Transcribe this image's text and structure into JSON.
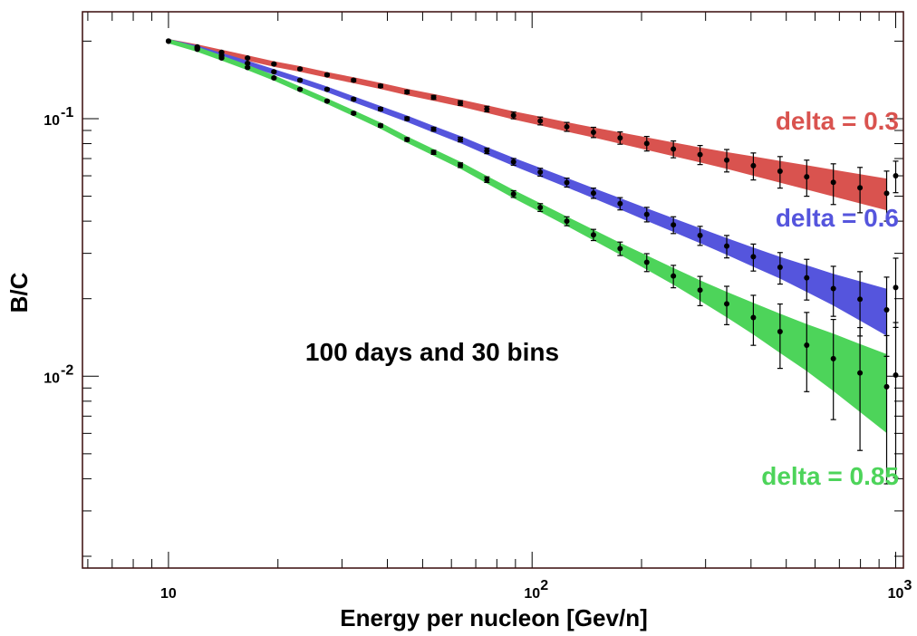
{
  "chart_data": {
    "type": "line",
    "title": "",
    "annotation": "100 days and 30 bins",
    "xlabel": "Energy per nucleon [Gev/n]",
    "ylabel": "B/C",
    "xscale": "log",
    "yscale": "log",
    "xlim": [
      5.8,
      1050
    ],
    "ylim": [
      0.0018,
      0.26
    ],
    "x_tick_labels": [
      {
        "value": 10,
        "base": "10",
        "exp": ""
      },
      {
        "value": 100,
        "base": "10",
        "exp": "2"
      },
      {
        "value": 1000,
        "base": "10",
        "exp": "3"
      }
    ],
    "y_tick_labels": [
      {
        "value": 0.1,
        "base": "10",
        "exp": "-1"
      },
      {
        "value": 0.01,
        "base": "10",
        "exp": "-2"
      }
    ],
    "x": [
      10,
      12,
      14,
      16.5,
      19.5,
      23,
      27.3,
      32.3,
      38.3,
      45.3,
      53.6,
      63.5,
      75.1,
      88.9,
      105.3,
      124.6,
      147.5,
      174.6,
      206.7,
      244.7,
      289.7,
      343.0,
      406.0,
      480.8,
      569.2,
      673.8,
      797.6,
      944.3,
      1000
    ],
    "series": [
      {
        "name": "delta = 0.3",
        "color": "#d9534f",
        "values": [
          0.2,
          0.19,
          0.181,
          0.172,
          0.163,
          0.156,
          0.148,
          0.141,
          0.134,
          0.127,
          0.121,
          0.115,
          0.109,
          0.103,
          0.098,
          0.093,
          0.0885,
          0.0842,
          0.0801,
          0.0762,
          0.0725,
          0.069,
          0.0657,
          0.0625,
          0.0595,
          0.0566,
          0.0539,
          0.0513,
          0.06
        ],
        "rel_error": [
          0.0,
          0.005,
          0.006,
          0.007,
          0.008,
          0.009,
          0.01,
          0.012,
          0.014,
          0.016,
          0.018,
          0.021,
          0.025,
          0.03,
          0.035,
          0.04,
          0.046,
          0.055,
          0.065,
          0.075,
          0.085,
          0.1,
          0.12,
          0.14,
          0.16,
          0.18,
          0.2,
          0.22,
          0.14
        ]
      },
      {
        "name": "delta = 0.6",
        "color": "#5555dd",
        "values": [
          0.2,
          0.188,
          0.176,
          0.164,
          0.152,
          0.141,
          0.13,
          0.119,
          0.109,
          0.1,
          0.091,
          0.083,
          0.075,
          0.068,
          0.062,
          0.0565,
          0.0514,
          0.0468,
          0.0425,
          0.0387,
          0.0352,
          0.032,
          0.0291,
          0.0265,
          0.0241,
          0.0219,
          0.0199,
          0.0181,
          0.0221
        ],
        "rel_error": [
          0.0,
          0.005,
          0.006,
          0.007,
          0.008,
          0.009,
          0.01,
          0.012,
          0.014,
          0.016,
          0.018,
          0.021,
          0.025,
          0.03,
          0.035,
          0.04,
          0.046,
          0.055,
          0.065,
          0.075,
          0.085,
          0.1,
          0.12,
          0.14,
          0.18,
          0.22,
          0.28,
          0.34,
          0.3
        ]
      },
      {
        "name": "delta = 0.85",
        "color": "#4dd45a",
        "values": [
          0.2,
          0.186,
          0.172,
          0.158,
          0.144,
          0.13,
          0.117,
          0.105,
          0.094,
          0.083,
          0.074,
          0.066,
          0.058,
          0.051,
          0.0452,
          0.04,
          0.0354,
          0.0313,
          0.0277,
          0.0245,
          0.0216,
          0.0191,
          0.0169,
          0.0149,
          0.0132,
          0.0117,
          0.0103,
          0.0091,
          0.0101
        ],
        "rel_error": [
          0.0,
          0.005,
          0.006,
          0.007,
          0.008,
          0.009,
          0.01,
          0.012,
          0.014,
          0.016,
          0.018,
          0.021,
          0.025,
          0.03,
          0.035,
          0.04,
          0.05,
          0.06,
          0.08,
          0.1,
          0.13,
          0.17,
          0.22,
          0.28,
          0.34,
          0.42,
          0.5,
          0.58,
          0.6
        ]
      }
    ],
    "series_labels": [
      "delta = 0.3",
      "delta = 0.6",
      "delta = 0.85"
    ]
  }
}
